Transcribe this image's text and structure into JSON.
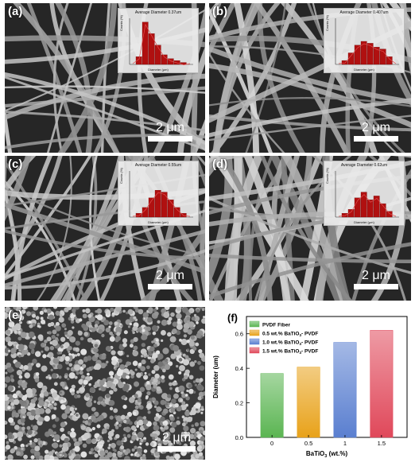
{
  "panels": [
    {
      "label": "(a)",
      "scale": "2 μm",
      "inset_title": "Average Diameter 0.37um"
    },
    {
      "label": "(b)",
      "scale": "2 μm",
      "inset_title": "Average Diameter 0.407um"
    },
    {
      "label": "(c)",
      "scale": "2 μm",
      "inset_title": "Average Diameter 0.55um"
    },
    {
      "label": "(d)",
      "scale": "2 μm",
      "inset_title": "Average Diameter 0.62um"
    },
    {
      "label": "(e)",
      "scale": "2 μm"
    }
  ],
  "inset_axes": {
    "xlabel": "Diameter (μm)",
    "ylabel": "Counts (%)"
  },
  "inset_hist": [
    [
      4,
      22,
      16,
      10,
      5,
      3,
      2,
      1
    ],
    [
      2,
      6,
      10,
      12,
      11,
      9,
      8,
      4
    ],
    [
      2,
      5,
      10,
      14,
      13,
      9,
      5,
      2
    ],
    [
      2,
      4,
      10,
      13,
      9,
      11,
      7,
      3
    ]
  ],
  "colors": {
    "bar_red": "#b01010",
    "fit_line": "#e05050",
    "sem_dark": "#2b2b2b"
  },
  "chart_data": {
    "label": "(f)",
    "type": "bar",
    "categories": [
      "0",
      "0.5",
      "1",
      "1.5"
    ],
    "values": [
      0.37,
      0.407,
      0.55,
      0.62
    ],
    "ylim": [
      0.0,
      0.7
    ],
    "yticks": [
      "0.0",
      "0.2",
      "0.4",
      "0.6"
    ],
    "xlabel_main": "BaTiO",
    "xlabel_sub": "3",
    "xlabel_tail": " (wt.%)",
    "ylabel": "Diameter (um)",
    "legend": [
      {
        "name": "PVDF Fiber",
        "color": "#5bb552"
      },
      {
        "name": "0.5 wt.% BaTiO",
        "sub": "3",
        "tail": "- PVDF",
        "color": "#e8a21a"
      },
      {
        "name": "1.0 wt.% BaTiO",
        "sub": "3",
        "tail": "- PVDF",
        "color": "#5a7fd0"
      },
      {
        "name": "1.5 wt.% BaTiO",
        "sub": "3",
        "tail": "- PVDF",
        "color": "#e0485a"
      }
    ],
    "legend_placement": "top-left"
  }
}
